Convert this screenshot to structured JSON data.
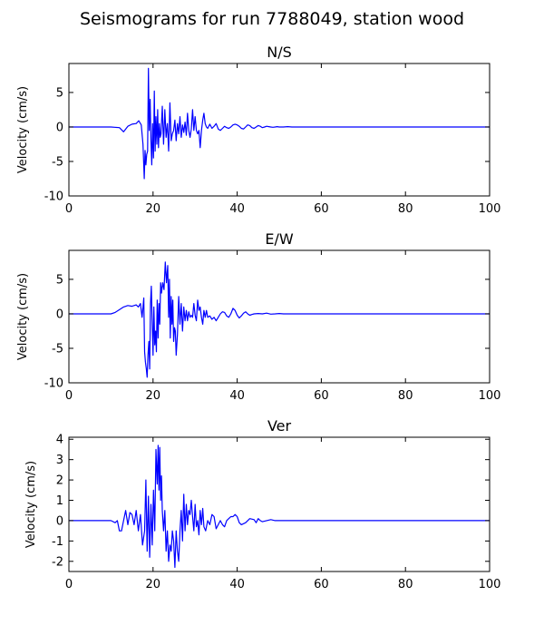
{
  "figure_title": "Seismograms for run 7788049, station wood",
  "chart_data": [
    {
      "type": "line",
      "title": "N/S",
      "ylabel": "Velocity (cm/s)",
      "xlabel": "",
      "xlim": [
        0,
        100
      ],
      "ylim": [
        -10,
        9.2
      ],
      "xticks": [
        0,
        20,
        40,
        60,
        80,
        100
      ],
      "yticks": [
        -10,
        -5,
        0,
        5
      ],
      "color": "#0000ff",
      "series": [
        {
          "x": [
            0,
            10,
            12,
            13,
            14,
            15,
            16,
            16.6,
            17.2,
            17.6,
            17.9,
            18.1,
            18.3,
            18.5,
            18.7,
            18.9,
            19.1,
            19.3,
            19.5,
            19.7,
            19.9,
            20.1,
            20.3,
            20.5,
            20.7,
            20.9,
            21.1,
            21.3,
            21.5,
            21.7,
            21.9,
            22.2,
            22.5,
            22.8,
            23.1,
            23.4,
            23.7,
            24,
            24.3,
            24.6,
            24.9,
            25.2,
            25.5,
            25.8,
            26.1,
            26.4,
            26.7,
            27,
            27.3,
            27.6,
            27.9,
            28.2,
            28.5,
            28.8,
            29.1,
            29.4,
            29.7,
            30,
            30.3,
            30.6,
            30.9,
            31.2,
            31.5,
            31.8,
            32.1,
            32.4,
            32.7,
            33,
            33.5,
            34,
            34.5,
            35,
            35.5,
            36,
            36.5,
            37,
            37.5,
            38,
            38.5,
            39,
            39.5,
            40,
            40.5,
            41,
            41.5,
            42,
            42.5,
            43,
            43.5,
            44,
            44.5,
            45,
            45.5,
            46,
            46.5,
            47,
            47.5,
            48,
            48.5,
            49,
            49.5,
            50,
            51,
            52,
            53,
            54,
            55,
            56,
            57,
            58,
            60,
            100
          ],
          "y": [
            0,
            0,
            -0.1,
            -0.7,
            0.1,
            0.4,
            0.5,
            0.9,
            0.3,
            -2.5,
            -7.5,
            -3.4,
            -5.5,
            -4.0,
            -3.5,
            8.5,
            -0.5,
            4.0,
            -2.0,
            -5.5,
            0.5,
            -4.5,
            5.2,
            -3.5,
            1.5,
            -2.5,
            2.5,
            -3.0,
            0.5,
            -1.5,
            -1.0,
            3.0,
            -2.5,
            2.5,
            -1.5,
            0.5,
            -3.5,
            3.5,
            -2.0,
            -1.0,
            -0.5,
            1.0,
            -2.0,
            0.5,
            -1.0,
            1.5,
            -1.5,
            0.3,
            -0.8,
            0.7,
            -1.2,
            2.0,
            -0.5,
            -1.5,
            -0.3,
            2.5,
            -0.5,
            1.5,
            -0.5,
            -1.0,
            -0.5,
            -3.0,
            -0.5,
            1.0,
            2.0,
            0.5,
            0.0,
            -0.2,
            0.4,
            -0.2,
            0.1,
            0.5,
            -0.3,
            -0.5,
            -0.2,
            0.1,
            -0.1,
            -0.2,
            0.0,
            0.3,
            0.4,
            0.3,
            0.1,
            -0.2,
            -0.3,
            0.0,
            0.3,
            0.2,
            -0.1,
            -0.2,
            0.0,
            0.2,
            0.1,
            -0.1,
            0.0,
            0.1,
            0.05,
            0.0,
            -0.05,
            0.0,
            0.05,
            0.0,
            0.0,
            0.05,
            0.0,
            0.0,
            0.0,
            0.0,
            0.0,
            0.0,
            0.0,
            0.0
          ]
        }
      ]
    },
    {
      "type": "line",
      "title": "E/W",
      "ylabel": "Velocity (cm/s)",
      "xlabel": "",
      "xlim": [
        0,
        100
      ],
      "ylim": [
        -10,
        9.2
      ],
      "xticks": [
        0,
        20,
        40,
        60,
        80,
        100
      ],
      "yticks": [
        -10,
        -5,
        0,
        5
      ],
      "color": "#0000ff",
      "series": [
        {
          "x": [
            0,
            10,
            11,
            12,
            13,
            14,
            15,
            16,
            16.5,
            17,
            17.4,
            17.8,
            18.0,
            18.2,
            18.4,
            18.6,
            18.8,
            19.0,
            19.2,
            19.4,
            19.6,
            19.8,
            20.0,
            20.2,
            20.4,
            20.6,
            20.8,
            21.0,
            21.2,
            21.4,
            21.6,
            21.8,
            22.0,
            22.3,
            22.6,
            22.9,
            23.2,
            23.5,
            23.7,
            23.9,
            24.1,
            24.3,
            24.5,
            24.7,
            24.9,
            25.1,
            25.3,
            25.5,
            25.8,
            26.1,
            26.4,
            26.7,
            27,
            27.3,
            27.6,
            27.9,
            28.2,
            28.5,
            28.8,
            29.1,
            29.4,
            29.7,
            30,
            30.3,
            30.6,
            30.9,
            31.2,
            31.5,
            31.8,
            32.1,
            32.4,
            32.7,
            33,
            33.5,
            34,
            34.5,
            35,
            35.5,
            36,
            36.5,
            37,
            37.5,
            38,
            38.5,
            39,
            39.5,
            40,
            40.5,
            41,
            41.5,
            42,
            42.5,
            43,
            43.5,
            44,
            45,
            46,
            47,
            48,
            49,
            50,
            51,
            52,
            53,
            54,
            55,
            56,
            57,
            58,
            60,
            100
          ],
          "y": [
            0,
            0,
            0.2,
            0.6,
            1.0,
            1.2,
            1.1,
            1.3,
            1.0,
            1.5,
            -0.5,
            2.3,
            -5.5,
            -7.0,
            -8.0,
            -9.2,
            -6.0,
            -4.0,
            -8.0,
            1.5,
            4.0,
            -1.5,
            -6.0,
            1.0,
            -4.5,
            -2.5,
            -5.5,
            2.0,
            -3.5,
            1.5,
            -1.5,
            4.5,
            3.0,
            4.5,
            3.5,
            7.5,
            4.5,
            7.0,
            -0.5,
            5.0,
            -3.5,
            2.5,
            -1.5,
            2.0,
            -4.0,
            -2.0,
            -2.5,
            -6.0,
            -3.0,
            2.5,
            -1.5,
            1.5,
            -2.5,
            1.0,
            -1.0,
            0.5,
            -1.0,
            0.3,
            -0.5,
            -0.2,
            -0.5,
            1.5,
            -0.2,
            -1.0,
            2.0,
            0.5,
            1.0,
            -0.5,
            -1.5,
            0.5,
            -0.5,
            0.5,
            -0.5,
            -0.3,
            -0.8,
            -0.5,
            -1.0,
            -0.5,
            0.0,
            0.3,
            0.2,
            -0.3,
            -0.5,
            0.0,
            0.8,
            0.5,
            -0.2,
            -0.6,
            -0.3,
            0.1,
            0.3,
            0.0,
            -0.2,
            -0.1,
            0.0,
            0.05,
            0.0,
            0.1,
            -0.05,
            0.0,
            0.05,
            0.0,
            0.0,
            0.0,
            0.0,
            0.0,
            0.0,
            0.0,
            0.0,
            0.0,
            0.0
          ]
        }
      ]
    },
    {
      "type": "line",
      "title": "Ver",
      "ylabel": "Velocity (cm/s)",
      "xlabel": "",
      "xlim": [
        0,
        100
      ],
      "ylim": [
        -2.5,
        4.1
      ],
      "xticks": [
        0,
        20,
        40,
        60,
        80,
        100
      ],
      "yticks": [
        -2,
        -1,
        0,
        1,
        2,
        3,
        4
      ],
      "color": "#0000ff",
      "series": [
        {
          "x": [
            0,
            10,
            11,
            11.5,
            12,
            12.5,
            13,
            13.5,
            14,
            14.5,
            15,
            15.5,
            16,
            16.5,
            17,
            17.5,
            18,
            18.3,
            18.6,
            18.9,
            19.2,
            19.5,
            19.8,
            20.1,
            20.4,
            20.7,
            21.0,
            21.2,
            21.4,
            21.6,
            21.8,
            22.0,
            22.2,
            22.5,
            22.8,
            23.1,
            23.4,
            23.7,
            24.0,
            24.3,
            24.6,
            24.9,
            25.2,
            25.5,
            25.8,
            26.1,
            26.4,
            26.7,
            27,
            27.3,
            27.6,
            27.9,
            28.2,
            28.5,
            28.8,
            29.1,
            29.4,
            29.7,
            30,
            30.3,
            30.6,
            30.9,
            31.2,
            31.5,
            31.8,
            32.1,
            32.5,
            33,
            33.5,
            34,
            34.5,
            35,
            35.5,
            36,
            36.5,
            37,
            37.5,
            38,
            38.5,
            39,
            39.5,
            40,
            40.5,
            41,
            42,
            43,
            44,
            44.5,
            45,
            45.5,
            46,
            47,
            48,
            49,
            50,
            52,
            54,
            56,
            58,
            60,
            100
          ],
          "y": [
            0,
            0,
            -0.1,
            0.0,
            -0.5,
            -0.5,
            0.0,
            0.5,
            -0.2,
            0.4,
            0.3,
            -0.2,
            0.5,
            -0.5,
            0.3,
            -1.2,
            -0.5,
            2.0,
            -1.5,
            1.2,
            -1.8,
            0.8,
            -1.2,
            1.5,
            -0.5,
            3.5,
            1.8,
            3.7,
            1.5,
            3.6,
            1.0,
            2.2,
            0.5,
            -0.5,
            0.5,
            -1.5,
            -0.5,
            -2.0,
            -1.2,
            -1.5,
            -0.5,
            -1.0,
            -2.3,
            -0.5,
            -1.5,
            -2.0,
            -0.5,
            0.5,
            -1.0,
            1.3,
            -0.5,
            0.8,
            -0.2,
            0.5,
            0.3,
            1.0,
            0.2,
            -0.5,
            0.8,
            -0.3,
            0.0,
            -0.7,
            0.5,
            -0.2,
            0.6,
            -0.3,
            -0.5,
            0.0,
            -0.2,
            0.3,
            0.2,
            -0.4,
            -0.2,
            0.0,
            -0.2,
            -0.3,
            0.0,
            0.1,
            0.2,
            0.2,
            0.3,
            0.2,
            -0.1,
            -0.2,
            -0.1,
            0.1,
            0.05,
            -0.1,
            0.1,
            0.0,
            -0.05,
            0.0,
            0.05,
            0.0,
            0.0,
            0.0,
            0.0,
            0.0,
            0.0,
            0.0,
            0.0
          ]
        }
      ]
    }
  ]
}
